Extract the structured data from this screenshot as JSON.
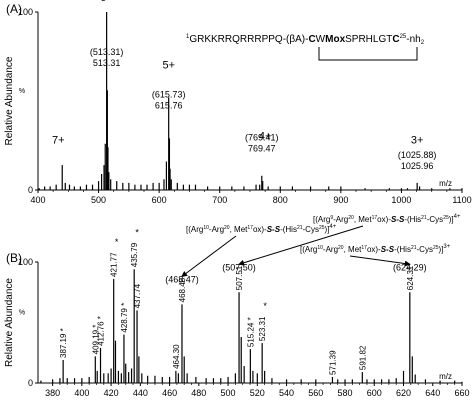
{
  "chart_data": [
    {
      "panel_label": "(A)",
      "type": "line",
      "ylabel": "Relative Abundance",
      "y_unit_label": "%",
      "xlabel": "m/z",
      "xlim": [
        400,
        1100
      ],
      "ylim": [
        0,
        100
      ],
      "x_tick_labels": [
        400,
        500,
        600,
        700,
        800,
        900,
        1000,
        1100
      ],
      "y_tick_labels": [
        0,
        100
      ],
      "sequence": {
        "sup1": "1",
        "part1": "GRKKRRQRRRPPQ-(βA)-",
        "bold1": "C",
        "part2": "W",
        "bold2": "Mox",
        "part3": "SPRHLGT",
        "bold3": "C",
        "sup2": "25",
        "part4": "-nh",
        "sub": "2"
      },
      "series": [
        {
          "peaks": [
            [
              402,
              1
            ],
            [
              411,
              2
            ],
            [
              420,
              2
            ],
            [
              430,
              3
            ],
            [
              440,
              14
            ],
            [
              445,
              4
            ],
            [
              452,
              3
            ],
            [
              460,
              2
            ],
            [
              470,
              2
            ],
            [
              480,
              3
            ],
            [
              490,
              3
            ],
            [
              500,
              5
            ],
            [
              505,
              9
            ],
            [
              509,
              14
            ],
            [
              511,
              26
            ],
            [
              513.31,
              100
            ],
            [
              514.5,
              56
            ],
            [
              515.5,
              24
            ],
            [
              517,
              10
            ],
            [
              520,
              6
            ],
            [
              530,
              5
            ],
            [
              540,
              4
            ],
            [
              550,
              4
            ],
            [
              560,
              3
            ],
            [
              570,
              3
            ],
            [
              580,
              3
            ],
            [
              590,
              4
            ],
            [
              600,
              4
            ],
            [
              608,
              6
            ],
            [
              612,
              16
            ],
            [
              615.76,
              52
            ],
            [
              617,
              29
            ],
            [
              618,
              12
            ],
            [
              620,
              6
            ],
            [
              630,
              4
            ],
            [
              640,
              3
            ],
            [
              650,
              3
            ],
            [
              660,
              3
            ],
            [
              680,
              2
            ],
            [
              700,
              2
            ],
            [
              720,
              2
            ],
            [
              740,
              2
            ],
            [
              760,
              3
            ],
            [
              766,
              3
            ],
            [
              769.47,
              8
            ],
            [
              771,
              5
            ],
            [
              780,
              2
            ],
            [
              800,
              2
            ],
            [
              820,
              2
            ],
            [
              850,
              2
            ],
            [
              880,
              2
            ],
            [
              900,
              2
            ],
            [
              940,
              1
            ],
            [
              980,
              1
            ],
            [
              1000,
              1
            ],
            [
              1010,
              1
            ],
            [
              1025.96,
              4
            ],
            [
              1030,
              2
            ],
            [
              1050,
              1
            ],
            [
              1080,
              1
            ],
            [
              1100,
              1
            ]
          ]
        }
      ],
      "charge_labels": [
        {
          "text": "7+",
          "x": 440,
          "y": 24
        },
        {
          "text": "6+",
          "x": 513,
          "y": 104
        },
        {
          "text": "5+",
          "x": 616,
          "y": 66
        },
        {
          "text": "4+",
          "x": 775,
          "y": 26
        },
        {
          "text": "3+",
          "x": 1026,
          "y": 24
        }
      ],
      "peak_labels": [
        {
          "theoretical": "(513.31)",
          "observed": "513.31",
          "x": 513.31,
          "y": 68
        },
        {
          "theoretical": "(615.73)",
          "observed": "615.76",
          "x": 615.76,
          "y": 44
        },
        {
          "theoretical": "(769.41)",
          "observed": "769.47",
          "x": 769.47,
          "y": 20
        },
        {
          "theoretical": "(1025.88)",
          "observed": "1025.96",
          "x": 1025.96,
          "y": 10
        }
      ]
    },
    {
      "panel_label": "(B)",
      "type": "line",
      "ylabel": "Relative Abundance",
      "y_unit_label": "%",
      "xlabel": "m/z",
      "xlim": [
        370,
        660
      ],
      "ylim": [
        0,
        100
      ],
      "x_tick_labels": [
        380,
        400,
        420,
        440,
        460,
        480,
        500,
        520,
        540,
        560,
        580,
        600,
        620,
        640,
        660
      ],
      "y_tick_labels": [
        0,
        100
      ],
      "series": [
        {
          "peaks": [
            [
              372,
              2
            ],
            [
              380,
              3
            ],
            [
              385,
              4
            ],
            [
              387.19,
              19
            ],
            [
              390,
              4
            ],
            [
              395,
              4
            ],
            [
              400,
              4
            ],
            [
              405,
              5
            ],
            [
              409.19,
              22
            ],
            [
              410.5,
              10
            ],
            [
              412.76,
              29
            ],
            [
              415,
              8
            ],
            [
              418,
              8
            ],
            [
              420,
              12
            ],
            [
              421.77,
              86
            ],
            [
              423,
              35
            ],
            [
              425,
              10
            ],
            [
              427,
              8
            ],
            [
              428.79,
              40
            ],
            [
              430,
              16
            ],
            [
              432,
              9
            ],
            [
              434,
              12
            ],
            [
              435.79,
              94
            ],
            [
              437.74,
              60
            ],
            [
              439,
              22
            ],
            [
              441,
              8
            ],
            [
              445,
              6
            ],
            [
              450,
              6
            ],
            [
              455,
              5
            ],
            [
              460,
              5
            ],
            [
              464.3,
              10
            ],
            [
              466,
              8
            ],
            [
              468.48,
              65
            ],
            [
              470,
              22
            ],
            [
              472,
              8
            ],
            [
              478,
              5
            ],
            [
              485,
              4
            ],
            [
              490,
              4
            ],
            [
              495,
              4
            ],
            [
              500,
              5
            ],
            [
              505,
              8
            ],
            [
              507.51,
              75
            ],
            [
              509,
              38
            ],
            [
              511,
              14
            ],
            [
              515.24,
              28
            ],
            [
              517,
              10
            ],
            [
              520,
              8
            ],
            [
              523.31,
              33
            ],
            [
              525,
              10
            ],
            [
              530,
              4
            ],
            [
              540,
              3
            ],
            [
              550,
              3
            ],
            [
              560,
              3
            ],
            [
              571.39,
              5
            ],
            [
              575,
              3
            ],
            [
              580,
              3
            ],
            [
              585,
              3
            ],
            [
              591.82,
              9
            ],
            [
              595,
              3
            ],
            [
              600,
              3
            ],
            [
              605,
              3
            ],
            [
              610,
              3
            ],
            [
              615,
              4
            ],
            [
              620,
              10
            ],
            [
              624.31,
              75
            ],
            [
              626,
              22
            ],
            [
              628,
              7
            ],
            [
              635,
              3
            ],
            [
              645,
              2
            ],
            [
              655,
              2
            ],
            [
              660,
              1
            ]
          ]
        }
      ],
      "peak_labels": [
        {
          "text": "387.19 *",
          "x": 387.19,
          "y": 19
        },
        {
          "text": "409.19 *",
          "x": 409.19,
          "y": 22
        },
        {
          "text": "412.76 *",
          "x": 412.76,
          "y": 29
        },
        {
          "text": "421.77",
          "star": "*",
          "x": 421.77,
          "y": 86
        },
        {
          "text": "428.79 *",
          "x": 428.79,
          "y": 40
        },
        {
          "text": "435.79",
          "star": "*",
          "x": 435.79,
          "y": 94
        },
        {
          "text": "437.74",
          "x": 437.74,
          "y": 60
        },
        {
          "text": "464.30",
          "x": 464.3,
          "y": 10
        },
        {
          "text": "468.48",
          "x": 468.48,
          "y": 65
        },
        {
          "text": "507.51",
          "x": 507.51,
          "y": 75
        },
        {
          "text": "515.24 *",
          "x": 515.24,
          "y": 28
        },
        {
          "text": "523.31",
          "star": "*",
          "x": 523.31,
          "y": 33
        },
        {
          "text": "571.39",
          "x": 571.39,
          "y": 5
        },
        {
          "text": "591.82",
          "x": 591.82,
          "y": 9
        },
        {
          "text": "624.31",
          "x": 624.31,
          "y": 75
        }
      ],
      "theoretical_labels": [
        {
          "text": "(468.47)",
          "x": 468.48
        },
        {
          "text": "(507.50)",
          "x": 507.51
        },
        {
          "text": "(624.29)",
          "x": 624.31
        }
      ],
      "ion_annotations": [
        {
          "open": "[(Arg",
          "a": "10",
          "b": "-Arg",
          "c": "20",
          "d": ", Met",
          "e": "17",
          "f": "ox)-",
          "ss": "S-S",
          "g": "-(His",
          "h": "21",
          "i": "-Cys",
          "j": "25",
          "close": ")]",
          "charge": "4+",
          "target_x": 468.48
        },
        {
          "open": "[(Arg",
          "a": "9",
          "b": "-Arg",
          "c": "20",
          "d": ", Met",
          "e": "17",
          "f": "ox)-",
          "ss": "S-S",
          "g": "-(His",
          "h": "21",
          "i": "-Cys",
          "j": "25",
          "close": ")]",
          "charge": "4+",
          "target_x": 507.51
        },
        {
          "open": "[(Arg",
          "a": "10",
          "b": "-Arg",
          "c": "20",
          "d": ", Met",
          "e": "17",
          "f": "ox)-",
          "ss": "S-S",
          "g": "-(His",
          "h": "21",
          "i": "-Cys",
          "j": "25",
          "close": ")]",
          "charge": "3+",
          "target_x": 624.31
        }
      ]
    }
  ]
}
